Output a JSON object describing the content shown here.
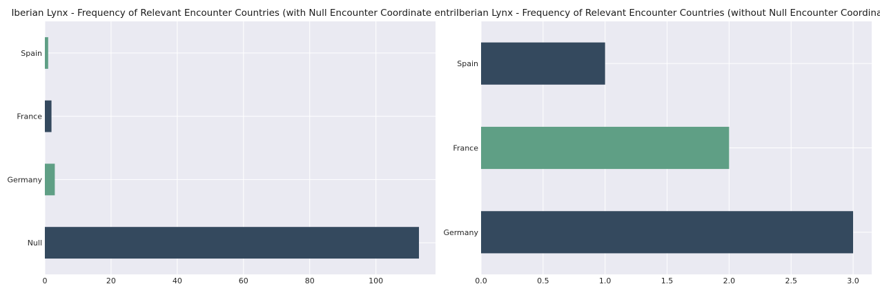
{
  "chart_data": [
    {
      "type": "bar",
      "orientation": "horizontal",
      "title": "Iberian Lynx - Frequency of Relevant Encounter Countries (with Null Encounter Coordinate entries)",
      "xlabel": "",
      "ylabel": "",
      "categories": [
        "Null",
        "Germany",
        "France",
        "Spain"
      ],
      "values": [
        113,
        3,
        2,
        1
      ],
      "bar_colors": [
        "#34495e",
        "#5f9f85",
        "#34495e",
        "#5f9f85"
      ],
      "xlim": [
        0,
        118
      ],
      "xticks": [
        0,
        20,
        40,
        60,
        80,
        100
      ],
      "xtick_labels": [
        "0",
        "20",
        "40",
        "60",
        "80",
        "100"
      ],
      "grid": true
    },
    {
      "type": "bar",
      "orientation": "horizontal",
      "title": "Iberian Lynx - Frequency of Relevant Encounter Countries (without Null Encounter Coordinate entries)",
      "xlabel": "",
      "ylabel": "",
      "categories": [
        "Germany",
        "France",
        "Spain"
      ],
      "values": [
        3,
        2,
        1
      ],
      "bar_colors": [
        "#34495e",
        "#5f9f85",
        "#34495e"
      ],
      "xlim": [
        0,
        3.15
      ],
      "xticks": [
        0,
        0.5,
        1,
        1.5,
        2,
        2.5,
        3
      ],
      "xtick_labels": [
        "0.0",
        "0.5",
        "1.0",
        "1.5",
        "2.0",
        "2.5",
        "3.0"
      ],
      "grid": true
    }
  ],
  "style": {
    "axes_background": "#eaeaf2",
    "grid_color": "#ffffff",
    "text_color": "#262626"
  }
}
